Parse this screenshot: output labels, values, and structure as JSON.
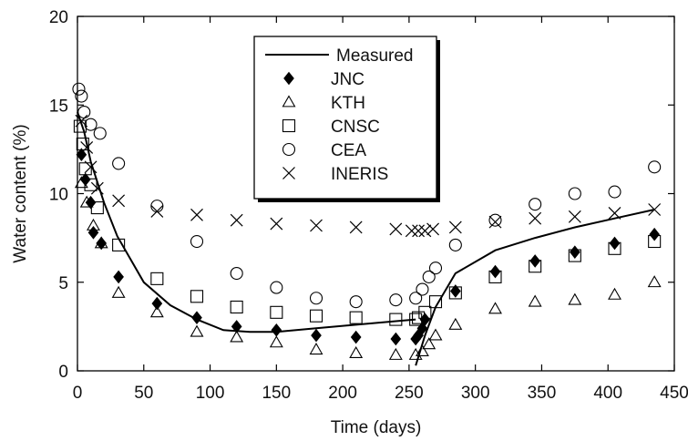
{
  "chart_data": {
    "type": "scatter",
    "xlabel": "Time (days)",
    "ylabel": "Water content (%)",
    "xlim": [
      0,
      450
    ],
    "ylim": [
      0,
      20
    ],
    "xticks": [
      0,
      50,
      100,
      150,
      200,
      250,
      300,
      350,
      400,
      450
    ],
    "yticks": [
      0,
      5,
      10,
      15,
      20
    ],
    "legend_position": "top-center",
    "grid": false,
    "series": [
      {
        "name": "Measured",
        "marker": "line",
        "segments": [
          [
            [
              0,
              14.6
            ],
            [
              5,
              13.5
            ],
            [
              10,
              11.8
            ],
            [
              20,
              9.5
            ],
            [
              30,
              7.6
            ],
            [
              50,
              5.0
            ],
            [
              70,
              3.7
            ],
            [
              90,
              2.9
            ],
            [
              110,
              2.3
            ],
            [
              130,
              2.2
            ],
            [
              150,
              2.2
            ],
            [
              180,
              2.4
            ],
            [
              210,
              2.6
            ],
            [
              240,
              2.8
            ],
            [
              255,
              2.9
            ]
          ],
          [
            [
              255,
              0.3
            ],
            [
              262,
              2.0
            ],
            [
              270,
              3.6
            ],
            [
              285,
              5.5
            ],
            [
              315,
              6.8
            ],
            [
              345,
              7.5
            ],
            [
              375,
              8.1
            ],
            [
              405,
              8.6
            ],
            [
              435,
              9.1
            ]
          ]
        ]
      },
      {
        "name": "JNC",
        "marker": "diamond",
        "points": [
          [
            3,
            12.2
          ],
          [
            6,
            10.8
          ],
          [
            10,
            9.5
          ],
          [
            12,
            7.8
          ],
          [
            18,
            7.2
          ],
          [
            31,
            5.3
          ],
          [
            60,
            3.8
          ],
          [
            90,
            3.0
          ],
          [
            120,
            2.5
          ],
          [
            150,
            2.3
          ],
          [
            180,
            2.0
          ],
          [
            210,
            1.9
          ],
          [
            240,
            1.8
          ],
          [
            255,
            1.8
          ],
          [
            257,
            2.0
          ],
          [
            260,
            2.4
          ],
          [
            262,
            2.9
          ],
          [
            285,
            4.5
          ],
          [
            315,
            5.6
          ],
          [
            345,
            6.2
          ],
          [
            375,
            6.7
          ],
          [
            405,
            7.2
          ],
          [
            435,
            7.7
          ]
        ]
      },
      {
        "name": "KTH",
        "marker": "triangle",
        "points": [
          [
            3,
            10.6
          ],
          [
            7,
            9.5
          ],
          [
            12,
            8.2
          ],
          [
            18,
            7.2
          ],
          [
            31,
            4.4
          ],
          [
            60,
            3.3
          ],
          [
            90,
            2.2
          ],
          [
            120,
            1.9
          ],
          [
            150,
            1.6
          ],
          [
            180,
            1.2
          ],
          [
            210,
            1.0
          ],
          [
            240,
            0.9
          ],
          [
            255,
            0.9
          ],
          [
            260,
            1.1
          ],
          [
            265,
            1.5
          ],
          [
            270,
            2.0
          ],
          [
            285,
            2.6
          ],
          [
            315,
            3.5
          ],
          [
            345,
            3.9
          ],
          [
            375,
            4.0
          ],
          [
            405,
            4.3
          ],
          [
            435,
            5.0
          ]
        ]
      },
      {
        "name": "CNSC",
        "marker": "square",
        "points": [
          [
            2,
            13.8
          ],
          [
            4,
            12.8
          ],
          [
            6,
            11.4
          ],
          [
            10,
            10.5
          ],
          [
            15,
            9.2
          ],
          [
            31,
            7.1
          ],
          [
            60,
            5.2
          ],
          [
            90,
            4.2
          ],
          [
            120,
            3.6
          ],
          [
            150,
            3.3
          ],
          [
            180,
            3.1
          ],
          [
            210,
            3.0
          ],
          [
            240,
            2.9
          ],
          [
            255,
            2.9
          ],
          [
            257,
            3.0
          ],
          [
            262,
            3.3
          ],
          [
            270,
            3.9
          ],
          [
            285,
            4.4
          ],
          [
            315,
            5.3
          ],
          [
            345,
            5.9
          ],
          [
            375,
            6.5
          ],
          [
            405,
            6.9
          ],
          [
            435,
            7.3
          ]
        ]
      },
      {
        "name": "CEA",
        "marker": "circle",
        "points": [
          [
            1,
            15.9
          ],
          [
            3,
            15.5
          ],
          [
            5,
            14.6
          ],
          [
            10,
            13.9
          ],
          [
            17,
            13.4
          ],
          [
            31,
            11.7
          ],
          [
            60,
            9.3
          ],
          [
            90,
            7.3
          ],
          [
            120,
            5.5
          ],
          [
            150,
            4.7
          ],
          [
            180,
            4.1
          ],
          [
            210,
            3.9
          ],
          [
            240,
            4.0
          ],
          [
            255,
            4.1
          ],
          [
            260,
            4.6
          ],
          [
            265,
            5.3
          ],
          [
            270,
            5.8
          ],
          [
            285,
            7.1
          ],
          [
            315,
            8.5
          ],
          [
            345,
            9.4
          ],
          [
            375,
            10.0
          ],
          [
            405,
            10.1
          ],
          [
            435,
            11.5
          ]
        ]
      },
      {
        "name": "INERIS",
        "marker": "x",
        "points": [
          [
            3,
            14.1
          ],
          [
            7,
            12.6
          ],
          [
            10,
            11.5
          ],
          [
            15,
            10.3
          ],
          [
            31,
            9.6
          ],
          [
            60,
            9.0
          ],
          [
            90,
            8.8
          ],
          [
            120,
            8.5
          ],
          [
            150,
            8.3
          ],
          [
            180,
            8.2
          ],
          [
            210,
            8.1
          ],
          [
            240,
            8.0
          ],
          [
            252,
            7.9
          ],
          [
            257,
            7.9
          ],
          [
            262,
            7.9
          ],
          [
            268,
            8.0
          ],
          [
            285,
            8.1
          ],
          [
            315,
            8.4
          ],
          [
            345,
            8.6
          ],
          [
            375,
            8.7
          ],
          [
            405,
            8.9
          ],
          [
            435,
            9.1
          ]
        ]
      }
    ]
  }
}
